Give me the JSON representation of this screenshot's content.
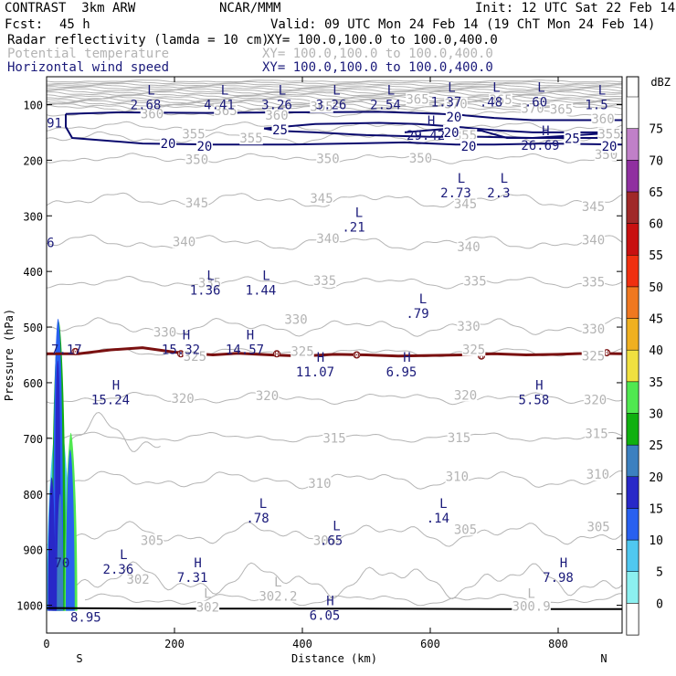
{
  "header": {
    "title_left": "CONTRAST  3km ARW",
    "title_center": "NCAR/MMM",
    "init": "Init: 12 UTC Sat 22 Feb 14",
    "fcst_label": "Fcst:",
    "fcst_value": "45 h",
    "valid": "Valid: 09 UTC Mon 24 Feb 14 (19 ChT Mon 24 Feb 14)",
    "field1": "Radar reflectivity (lamda = 10 cm)",
    "field1_xy": "XY= 100.0,100.0 to 100.0,400.0",
    "field2": "Potential temperature",
    "field2_xy": "XY= 100.0,100.0 to 100.0,400.0",
    "field3": "Horizontal wind speed",
    "field3_xy": "XY= 100.0,100.0 to 100.0,400.0"
  },
  "colors": {
    "theta": "#b4b4b4",
    "wind": "#0a0a6e",
    "freezing": "#7a1010",
    "label": "#1a1a7a"
  },
  "chart_data": {
    "type": "cross-section",
    "xlabel": "Distance (km)",
    "ylabel": "Pressure (hPa)",
    "xlim": [
      0,
      900
    ],
    "ylim": [
      1050,
      50
    ],
    "x_ticks": [
      0,
      200,
      400,
      600,
      800
    ],
    "y_ticks": [
      100,
      200,
      300,
      400,
      500,
      600,
      700,
      800,
      900,
      1000
    ],
    "x_end_labels": {
      "left": "S",
      "right": "N"
    },
    "colorbar": {
      "unit": "dBZ",
      "levels": [
        "0",
        "5",
        "10",
        "15",
        "20",
        "25",
        "30",
        "35",
        "40",
        "45",
        "50",
        "55",
        "60",
        "65",
        "70",
        "75"
      ],
      "colors": [
        "#ffffff",
        "#8cf0f0",
        "#50c8f0",
        "#2860f0",
        "#2828c8",
        "#3c80c0",
        "#10b010",
        "#50e850",
        "#f0e040",
        "#f0b020",
        "#f07820",
        "#f03010",
        "#c81010",
        "#a02828",
        "#9030a0",
        "#c080c8",
        "#ffffff"
      ]
    },
    "theta_labels": [
      {
        "x": 165,
        "p": 118,
        "v": "360"
      },
      {
        "x": 280,
        "p": 112,
        "v": "365"
      },
      {
        "x": 430,
        "p": 105,
        "v": "365"
      },
      {
        "x": 580,
        "p": 92,
        "v": "365"
      },
      {
        "x": 710,
        "p": 93,
        "v": "365"
      },
      {
        "x": 640,
        "p": 100,
        "v": "370"
      },
      {
        "x": 760,
        "p": 108,
        "v": "370"
      },
      {
        "x": 805,
        "p": 110,
        "v": "365"
      },
      {
        "x": 870,
        "p": 127,
        "v": "360"
      },
      {
        "x": 360,
        "p": 121,
        "v": "360"
      },
      {
        "x": 230,
        "p": 154,
        "v": "355"
      },
      {
        "x": 320,
        "p": 162,
        "v": "355"
      },
      {
        "x": 655,
        "p": 157,
        "v": "355"
      },
      {
        "x": 880,
        "p": 154,
        "v": "355"
      },
      {
        "x": 235,
        "p": 200,
        "v": "350"
      },
      {
        "x": 440,
        "p": 199,
        "v": "350"
      },
      {
        "x": 585,
        "p": 198,
        "v": "350"
      },
      {
        "x": 875,
        "p": 191,
        "v": "350"
      },
      {
        "x": 235,
        "p": 278,
        "v": "345"
      },
      {
        "x": 430,
        "p": 270,
        "v": "345"
      },
      {
        "x": 655,
        "p": 280,
        "v": "345"
      },
      {
        "x": 855,
        "p": 285,
        "v": "345"
      },
      {
        "x": 215,
        "p": 348,
        "v": "340"
      },
      {
        "x": 440,
        "p": 342,
        "v": "340"
      },
      {
        "x": 660,
        "p": 357,
        "v": "340"
      },
      {
        "x": 855,
        "p": 345,
        "v": "340"
      },
      {
        "x": 255,
        "p": 422,
        "v": "335"
      },
      {
        "x": 435,
        "p": 418,
        "v": "335"
      },
      {
        "x": 670,
        "p": 419,
        "v": "335"
      },
      {
        "x": 855,
        "p": 420,
        "v": "335"
      },
      {
        "x": 185,
        "p": 511,
        "v": "330"
      },
      {
        "x": 390,
        "p": 488,
        "v": "330"
      },
      {
        "x": 660,
        "p": 500,
        "v": "330"
      },
      {
        "x": 855,
        "p": 505,
        "v": "330"
      },
      {
        "x": 232,
        "p": 554,
        "v": "325"
      },
      {
        "x": 400,
        "p": 545,
        "v": "325"
      },
      {
        "x": 668,
        "p": 542,
        "v": "325"
      },
      {
        "x": 855,
        "p": 553,
        "v": "325"
      },
      {
        "x": 213,
        "p": 630,
        "v": "320"
      },
      {
        "x": 345,
        "p": 625,
        "v": "320"
      },
      {
        "x": 655,
        "p": 624,
        "v": "320"
      },
      {
        "x": 858,
        "p": 632,
        "v": "320"
      },
      {
        "x": 450,
        "p": 701,
        "v": "315"
      },
      {
        "x": 645,
        "p": 700,
        "v": "315"
      },
      {
        "x": 860,
        "p": 693,
        "v": "315"
      },
      {
        "x": 427,
        "p": 782,
        "v": "310"
      },
      {
        "x": 642,
        "p": 770,
        "v": "310"
      },
      {
        "x": 862,
        "p": 766,
        "v": "310"
      },
      {
        "x": 165,
        "p": 885,
        "v": "305"
      },
      {
        "x": 435,
        "p": 885,
        "v": "305"
      },
      {
        "x": 655,
        "p": 865,
        "v": "305"
      },
      {
        "x": 863,
        "p": 860,
        "v": "305"
      },
      {
        "x": 143,
        "p": 955,
        "v": "302"
      },
      {
        "x": 252,
        "p": 1005,
        "v": "302"
      },
      {
        "x": 362,
        "p": 985,
        "v": "302.2"
      },
      {
        "x": 758,
        "p": 1003,
        "v": "300.9"
      }
    ],
    "theta_L_marks": [
      {
        "x": 252,
        "p": 980
      },
      {
        "x": 362,
        "p": 960
      },
      {
        "x": 758,
        "p": 980
      }
    ],
    "wind_contour_labels": [
      {
        "x": 190,
        "p": 170,
        "v": "20"
      },
      {
        "x": 247,
        "p": 175,
        "v": "20"
      },
      {
        "x": 365,
        "p": 145,
        "v": "25"
      },
      {
        "x": 637,
        "p": 122,
        "v": "20"
      },
      {
        "x": 633,
        "p": 150,
        "v": "20"
      },
      {
        "x": 660,
        "p": 175,
        "v": "20"
      },
      {
        "x": 822,
        "p": 161,
        "v": "25"
      },
      {
        "x": 880,
        "p": 175,
        "v": "20"
      }
    ],
    "wind_extrema": [
      {
        "x": 3,
        "p": 125,
        "t": "",
        "v": "91"
      },
      {
        "x": 155,
        "p": 92,
        "t": "L",
        "v": "2.68"
      },
      {
        "x": 270,
        "p": 92,
        "t": "L",
        "v": "4.41"
      },
      {
        "x": 360,
        "p": 92,
        "t": "L",
        "v": "3.26"
      },
      {
        "x": 445,
        "p": 92,
        "t": "L",
        "v": "3.26"
      },
      {
        "x": 530,
        "p": 92,
        "t": "L",
        "v": "2.54"
      },
      {
        "x": 625,
        "p": 87,
        "t": "L",
        "v": "1.37"
      },
      {
        "x": 695,
        "p": 87,
        "t": "L",
        "v": ".48"
      },
      {
        "x": 765,
        "p": 87,
        "t": "L",
        "v": ".60"
      },
      {
        "x": 860,
        "p": 92,
        "t": "L",
        "v": "1.5"
      },
      {
        "x": 593,
        "p": 147,
        "t": "H",
        "v": "29.42"
      },
      {
        "x": 772,
        "p": 165,
        "t": "H",
        "v": "26.69"
      },
      {
        "x": 640,
        "p": 250,
        "t": "L",
        "v": "2.73"
      },
      {
        "x": 707,
        "p": 250,
        "t": "L",
        "v": "2.3"
      },
      {
        "x": 480,
        "p": 312,
        "t": "L",
        "v": ".21"
      },
      {
        "x": 3,
        "p": 340,
        "t": "",
        "v": "6"
      },
      {
        "x": 248,
        "p": 425,
        "t": "L",
        "v": "1.36"
      },
      {
        "x": 335,
        "p": 425,
        "t": "L",
        "v": "1.44"
      },
      {
        "x": 580,
        "p": 467,
        "t": "L",
        "v": ".79"
      },
      {
        "x": 10,
        "p": 532,
        "t": "",
        "v": "7.17"
      },
      {
        "x": 210,
        "p": 532,
        "t": "H",
        "v": "15.32"
      },
      {
        "x": 310,
        "p": 532,
        "t": "H",
        "v": "14.57"
      },
      {
        "x": 420,
        "p": 572,
        "t": "H",
        "v": "11.07"
      },
      {
        "x": 555,
        "p": 572,
        "t": "H",
        "v": "6.95"
      },
      {
        "x": 100,
        "p": 622,
        "t": "H",
        "v": "15.24"
      },
      {
        "x": 762,
        "p": 622,
        "t": "H",
        "v": "5.58"
      },
      {
        "x": 330,
        "p": 835,
        "t": "L",
        "v": ".78"
      },
      {
        "x": 445,
        "p": 875,
        "t": "L",
        "v": ".65"
      },
      {
        "x": 612,
        "p": 835,
        "t": "L",
        "v": ".14"
      },
      {
        "x": 15,
        "p": 915,
        "t": "",
        "v": "70"
      },
      {
        "x": 112,
        "p": 927,
        "t": "L",
        "v": "2.36"
      },
      {
        "x": 228,
        "p": 942,
        "t": "H",
        "v": "7.31"
      },
      {
        "x": 800,
        "p": 942,
        "t": "H",
        "v": "7.98"
      },
      {
        "x": 435,
        "p": 1010,
        "t": "H",
        "v": "6.05"
      },
      {
        "x": 40,
        "p": 1013,
        "t": "",
        "v": "8.95"
      }
    ],
    "freezing_level": {
      "label": "0",
      "points": [
        [
          0,
          548
        ],
        [
          50,
          548
        ],
        [
          100,
          541
        ],
        [
          150,
          537
        ],
        [
          200,
          545
        ],
        [
          260,
          550
        ],
        [
          300,
          547
        ],
        [
          350,
          550
        ],
        [
          400,
          552
        ],
        [
          450,
          549
        ],
        [
          500,
          550
        ],
        [
          550,
          552
        ],
        [
          600,
          551
        ],
        [
          650,
          550
        ],
        [
          700,
          548
        ],
        [
          750,
          550
        ],
        [
          800,
          549
        ],
        [
          850,
          547
        ],
        [
          900,
          548
        ]
      ]
    },
    "zero_marks": [
      [
        45,
        544
      ],
      [
        210,
        548
      ],
      [
        360,
        548
      ],
      [
        485,
        550
      ],
      [
        680,
        552
      ],
      [
        876,
        546
      ]
    ]
  }
}
